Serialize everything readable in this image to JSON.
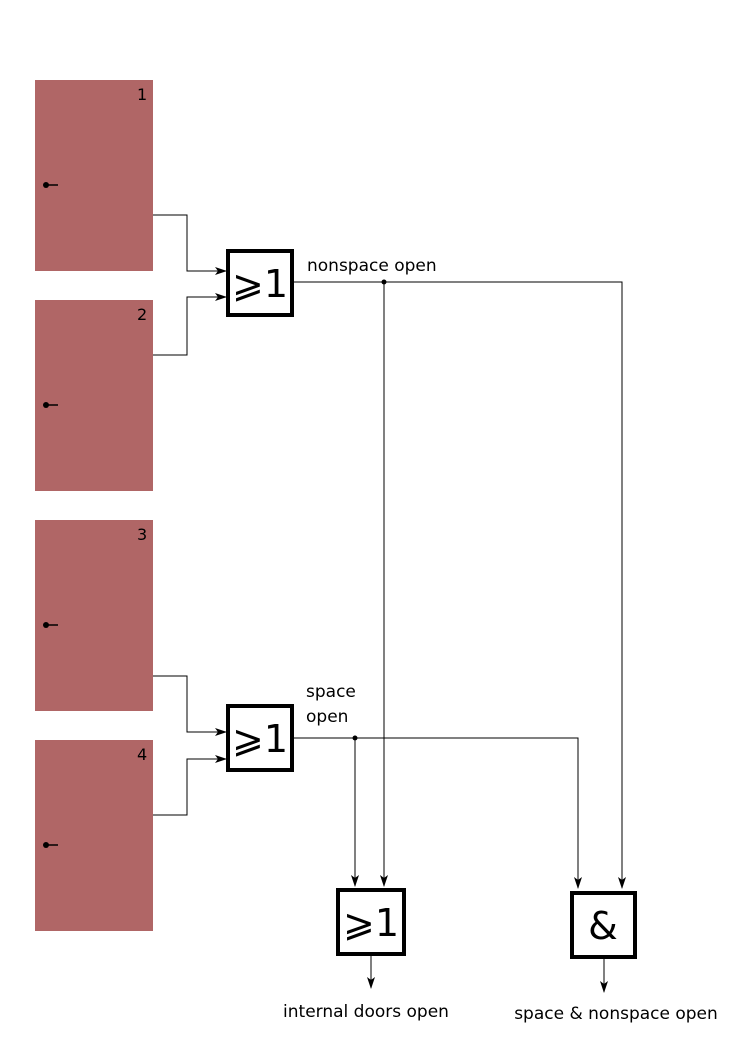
{
  "doors": [
    {
      "number": "1"
    },
    {
      "number": "2"
    },
    {
      "number": "3"
    },
    {
      "number": "4"
    }
  ],
  "gates": {
    "or_nonspace": {
      "symbol": "⩾1"
    },
    "or_space": {
      "symbol": "⩾1"
    },
    "or_internal": {
      "symbol": "⩾1"
    },
    "and_both": {
      "symbol": "&"
    }
  },
  "labels": {
    "nonspace_open": "nonspace open",
    "space_open_line1": "space",
    "space_open_line2": "open",
    "internal_doors_open": "internal doors open",
    "space_and_nonspace_open": "space & nonspace open"
  },
  "colors": {
    "door_fill": "#b06666",
    "line": "#000000"
  }
}
